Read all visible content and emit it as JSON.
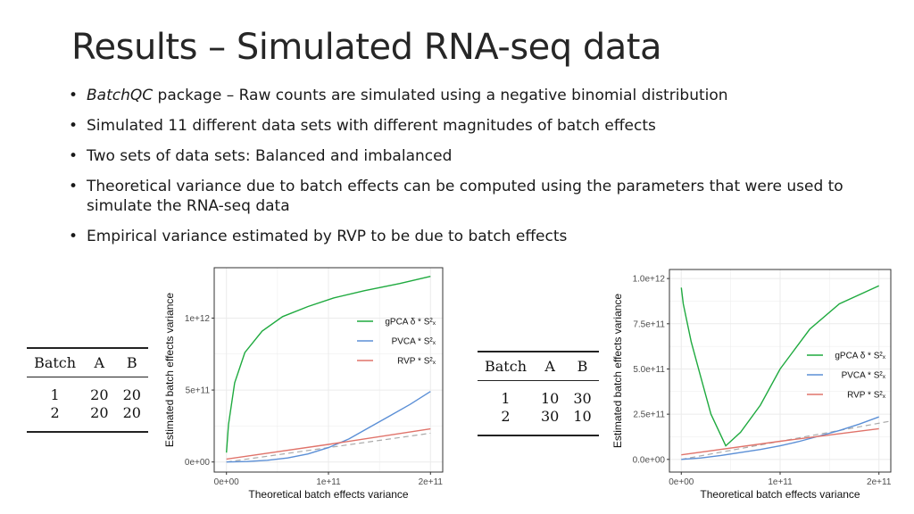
{
  "title": "Results – Simulated RNA-seq data",
  "bullets": [
    {
      "emph": "BatchQC",
      "text": " package – Raw counts are simulated using a negative binomial distribution"
    },
    {
      "emph": "",
      "text": "Simulated 11 different data sets with different magnitudes of batch effects"
    },
    {
      "emph": "",
      "text": "Two sets of data sets: Balanced and imbalanced"
    },
    {
      "emph": "",
      "text": "Theoretical variance due to batch effects can be computed using the parameters that were used to simulate the RNA-seq data"
    },
    {
      "emph": "",
      "text": "Empirical variance estimated by RVP to be due to batch effects"
    }
  ],
  "tables": {
    "balanced": {
      "headers": [
        "Batch",
        "A",
        "B"
      ],
      "rows": [
        [
          "1",
          "20",
          "20"
        ],
        [
          "2",
          "20",
          "20"
        ]
      ]
    },
    "imbalanced": {
      "headers": [
        "Batch",
        "A",
        "B"
      ],
      "rows": [
        [
          "1",
          "10",
          "30"
        ],
        [
          "2",
          "30",
          "10"
        ]
      ]
    }
  },
  "colors": {
    "gpca": "#1faa3f",
    "pvca": "#5b8fd6",
    "rvp": "#e0736a",
    "reference": "#aaaaaa",
    "grid": "#ebebeb",
    "panel_border": "#333333"
  },
  "chart_data": [
    {
      "type": "line",
      "xlabel": "Theoretical batch effects variance",
      "ylabel": "Estimated batch effects variance",
      "xlim": [
        -12000000000.0,
        212000000000.0
      ],
      "ylim": [
        -70000000000.0,
        1350000000000.0
      ],
      "x_ticks": [
        0,
        100000000000.0,
        200000000000.0
      ],
      "x_tick_labels": [
        "0e+00",
        "1e+11",
        "2e+11"
      ],
      "y_ticks": [
        0,
        500000000000.0,
        1000000000000.0
      ],
      "y_tick_labels": [
        "0e+00",
        "5e+11",
        "1e+12"
      ],
      "grid": true,
      "legend": "right",
      "reference_line": {
        "style": "dashed",
        "points": [
          [
            0,
            0
          ],
          [
            200000000000.0,
            200000000000.0
          ]
        ]
      },
      "series": [
        {
          "name": "gPCA δ * S²ₓ",
          "color_key": "gpca",
          "x": [
            0,
            2000000000.0,
            8000000000.0,
            18000000000.0,
            35000000000.0,
            55000000000.0,
            80000000000.0,
            105000000000.0,
            135000000000.0,
            170000000000.0,
            200000000000.0
          ],
          "y": [
            65000000000.0,
            260000000000.0,
            550000000000.0,
            760000000000.0,
            910000000000.0,
            1010000000000.0,
            1080000000000.0,
            1140000000000.0,
            1190000000000.0,
            1240000000000.0,
            1290000000000.0
          ]
        },
        {
          "name": "PVCA * S²ₓ",
          "color_key": "pvca",
          "x": [
            0,
            20000000000.0,
            40000000000.0,
            60000000000.0,
            80000000000.0,
            100000000000.0,
            120000000000.0,
            140000000000.0,
            160000000000.0,
            180000000000.0,
            200000000000.0
          ],
          "y": [
            0,
            3000000000.0,
            12000000000.0,
            28000000000.0,
            56000000000.0,
            100000000000.0,
            160000000000.0,
            240000000000.0,
            320000000000.0,
            400000000000.0,
            490000000000.0
          ]
        },
        {
          "name": "RVP * S²ₓ",
          "color_key": "rvp",
          "x": [
            0,
            100000000000.0,
            200000000000.0
          ],
          "y": [
            20000000000.0,
            122000000000.0,
            230000000000.0
          ]
        }
      ]
    },
    {
      "type": "line",
      "xlabel": "Theoretical batch effects variance",
      "ylabel": "Estimated batch effects variance",
      "xlim": [
        -12000000000.0,
        212000000000.0
      ],
      "ylim": [
        -70000000000.0,
        1050000000000.0
      ],
      "x_ticks": [
        0,
        100000000000.0,
        200000000000.0
      ],
      "x_tick_labels": [
        "0e+00",
        "1e+11",
        "2e+11"
      ],
      "y_ticks": [
        0,
        250000000000.0,
        500000000000.0,
        750000000000.0,
        1000000000000.0
      ],
      "y_tick_labels": [
        "0.0e+00",
        "2.5e+11",
        "5.0e+11",
        "7.5e+11",
        "1.0e+12"
      ],
      "grid": true,
      "legend": "right",
      "reference_line": {
        "style": "dashed",
        "points": [
          [
            0,
            0
          ],
          [
            210000000000.0,
            210000000000.0
          ]
        ]
      },
      "series": [
        {
          "name": "gPCA δ * S²ₓ",
          "color_key": "gpca",
          "x": [
            0,
            2000000000.0,
            10000000000.0,
            20000000000.0,
            30000000000.0,
            45000000000.0,
            60000000000.0,
            80000000000.0,
            100000000000.0,
            130000000000.0,
            160000000000.0,
            200000000000.0
          ],
          "y": [
            950000000000.0,
            860000000000.0,
            650000000000.0,
            450000000000.0,
            250000000000.0,
            75000000000.0,
            150000000000.0,
            300000000000.0,
            500000000000.0,
            720000000000.0,
            860000000000.0,
            960000000000.0
          ]
        },
        {
          "name": "PVCA * S²ₓ",
          "color_key": "pvca",
          "x": [
            0,
            20000000000.0,
            40000000000.0,
            60000000000.0,
            80000000000.0,
            100000000000.0,
            120000000000.0,
            140000000000.0,
            160000000000.0,
            180000000000.0,
            200000000000.0
          ],
          "y": [
            0,
            8000000000.0,
            22000000000.0,
            38000000000.0,
            55000000000.0,
            75000000000.0,
            100000000000.0,
            130000000000.0,
            160000000000.0,
            195000000000.0,
            235000000000.0
          ]
        },
        {
          "name": "RVP * S²ₓ",
          "color_key": "rvp",
          "x": [
            0,
            100000000000.0,
            200000000000.0
          ],
          "y": [
            25000000000.0,
            100000000000.0,
            170000000000.0
          ]
        }
      ]
    }
  ]
}
